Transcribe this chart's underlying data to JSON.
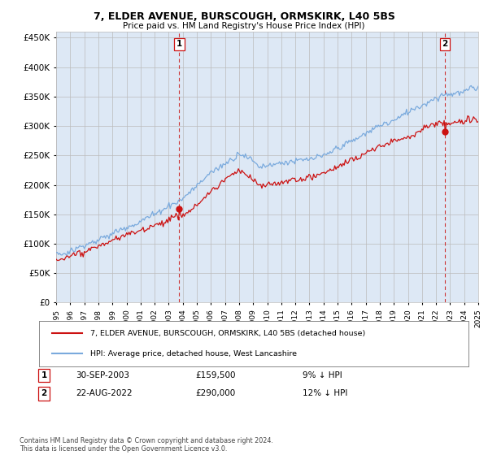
{
  "title": "7, ELDER AVENUE, BURSCOUGH, ORMSKIRK, L40 5BS",
  "subtitle": "Price paid vs. HM Land Registry's House Price Index (HPI)",
  "ylim": [
    0,
    460000
  ],
  "yticks": [
    0,
    50000,
    100000,
    150000,
    200000,
    250000,
    300000,
    350000,
    400000,
    450000
  ],
  "ytick_labels": [
    "£0",
    "£50K",
    "£100K",
    "£150K",
    "£200K",
    "£250K",
    "£300K",
    "£350K",
    "£400K",
    "£450K"
  ],
  "background_color": "#ffffff",
  "chart_bg_color": "#dde8f5",
  "grid_color": "#bbbbbb",
  "hpi_color": "#7aaadd",
  "price_color": "#cc1111",
  "vline_color": "#cc3333",
  "t1_year": 2003.75,
  "t1_value": 159500,
  "t2_year": 2022.63,
  "t2_value": 290000,
  "legend_house": "7, ELDER AVENUE, BURSCOUGH, ORMSKIRK, L40 5BS (detached house)",
  "legend_hpi": "HPI: Average price, detached house, West Lancashire",
  "annotation1_label": "1",
  "annotation1_date": "30-SEP-2003",
  "annotation1_price": "£159,500",
  "annotation1_pct": "9% ↓ HPI",
  "annotation2_label": "2",
  "annotation2_date": "22-AUG-2022",
  "annotation2_price": "£290,000",
  "annotation2_pct": "12% ↓ HPI",
  "footnote": "Contains HM Land Registry data © Crown copyright and database right 2024.\nThis data is licensed under the Open Government Licence v3.0."
}
